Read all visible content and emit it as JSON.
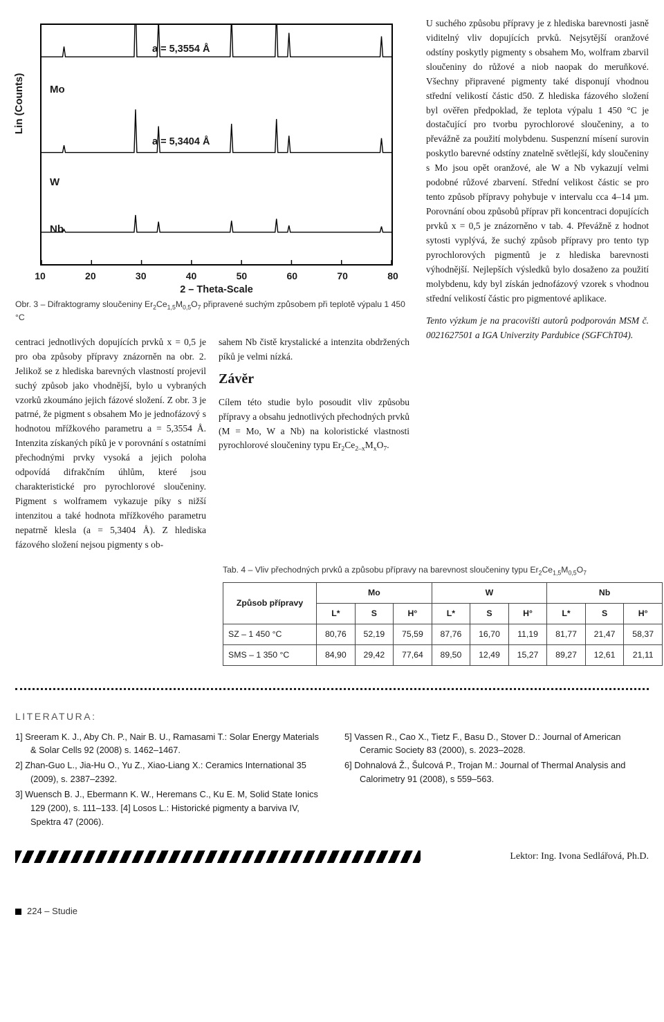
{
  "chart": {
    "type": "xrd",
    "ylabel": "Lin (Counts)",
    "xlabel": "2 – Theta-Scale",
    "xticks": [
      10,
      20,
      30,
      40,
      50,
      60,
      70,
      80
    ],
    "xlim": [
      10,
      80
    ],
    "line_color": "#000000",
    "line_width": 1.4,
    "background_color": "#ffffff",
    "border_color": "#000000",
    "series": [
      {
        "label": "Mo",
        "annotation": "a = 5,3554 Å",
        "baseline": 260
      },
      {
        "label": "W",
        "annotation": "a = 5,3404 Å",
        "baseline": 140
      },
      {
        "label": "Nb",
        "annotation": "",
        "baseline": 40
      }
    ],
    "peaks_2theta": [
      14.5,
      28.8,
      33.4,
      48.0,
      57.0,
      59.5,
      78.0
    ],
    "peak_heights": [
      15,
      90,
      55,
      60,
      70,
      35,
      30
    ],
    "caption_prefix": "Obr. 3 – Difraktogramy sloučeniny Er",
    "caption_formula_parts": [
      "2",
      "Ce",
      "1,5",
      "M",
      "0,5",
      "O",
      "7"
    ],
    "caption_suffix": " připravené suchým způsobem při teplotě výpalu 1 450 °C"
  },
  "col_left": "centraci jednotlivých dopujících prvků x = 0,5 je pro oba způsoby přípravy znázorněn na obr. 2.\nJelikož se z hlediska barevných vlastností projevil suchý způsob jako vhodnější, bylo u vybraných vzorků zkoumáno jejich fázové složení. Z obr. 3 je patrné, že pigment s obsahem Mo je jednofázový s hodnotou mřížkového parametru a = 5,3554 Å. Intenzita získaných píků je v porovnání s ostatními přechodnými prvky vysoká a jejich poloha odpovídá difrakčním úhlům, které jsou charakteristické pro pyrochlorové sloučeniny. Pigment s wolframem vykazuje píky s nižší intenzitou a také hodnota mřížkového parametru nepatrně klesla (a = 5,3404 Å). Z hlediska fázového složení nejsou pigmenty s ob-",
  "col_mid_top": "sahem Nb čistě krystalické a intenzita obdržených píků je velmi nízká.",
  "zaver_heading": "Závěr",
  "col_mid_body_prefix": "Cílem této studie bylo posoudit vliv způsobu přípravy a obsahu jednotlivých přechodných prvků (M = Mo, W a Nb) na koloristické vlastnosti pyrochlorové sloučeniny typu Er",
  "col_mid_formula_parts": [
    "2",
    "Ce",
    "2–x",
    "M",
    "x",
    "O",
    "7"
  ],
  "col_mid_body_suffix": ".",
  "right_col_p1": "U suchého způsobu přípravy je z hlediska barevnosti jasně viditelný vliv dopujících prvků. Nejsytější oranžové odstíny poskytly pigmenty s obsahem Mo, wolfram zbarvil sloučeniny do růžové a niob naopak do meruňkové. Všechny připravené pigmenty také disponují vhodnou střední velikostí částic d50. Z hlediska fázového složení byl ověřen předpoklad, že teplota výpalu 1 450 °C je dostačující pro tvorbu pyrochlorové sloučeniny, a to převážně za použití molybdenu. Suspenzní mísení surovin poskytlo barevné odstíny znatelně světlejší, kdy sloučeniny s Mo jsou opět oranžové, ale W a Nb vykazují velmi podobné růžové zbarvení. Střední velikost částic se pro tento způsob přípravy pohybuje v intervalu cca 4–14 µm. Porovnání obou způsobů příprav při koncentraci dopujících prvků x = 0,5 je znázorněno v tab. 4. Převážně z hodnot sytosti vyplývá, že suchý způsob přípravy pro tento typ pyrochlorových pigmentů je z hlediska barevnosti výhodnější. Nejlepších výsledků bylo dosaženo za použití molybdenu, kdy byl získán jednofázový vzorek s vhodnou střední velikostí částic pro pigmentové aplikace.",
  "right_col_p2": "Tento výzkum je na pracovišti autorů podporován MSM č. 0021627501 a IGA Univerzity Pardubice (SGFChT04).",
  "table": {
    "caption_prefix": "Tab. 4 – Vliv přechodných prvků a způsobu přípravy na barevnost sloučeniny typu Er",
    "caption_formula_parts": [
      "2",
      "Ce",
      "1,5",
      "M",
      "0,5",
      "O",
      "7"
    ],
    "row_header": "Způsob přípravy",
    "groups": [
      "Mo",
      "W",
      "Nb"
    ],
    "subheaders": [
      "L*",
      "S",
      "H°"
    ],
    "rows": [
      {
        "label": "SZ – 1 450 °C",
        "vals": [
          "80,76",
          "52,19",
          "75,59",
          "87,76",
          "16,70",
          "11,19",
          "81,77",
          "21,47",
          "58,37"
        ]
      },
      {
        "label": "SMS – 1 350 °C",
        "vals": [
          "84,90",
          "29,42",
          "77,64",
          "89,50",
          "12,49",
          "15,27",
          "89,27",
          "12,61",
          "21,11"
        ]
      }
    ],
    "border_color": "#444444",
    "font_size": 12.3
  },
  "lit_heading": "LITERATURA:",
  "refs_left": [
    "1] Sreeram K. J., Aby Ch. P., Nair B. U., Ramasami T.: Solar Energy Materials & Solar Cells 92 (2008) s. 1462–1467.",
    "2] Zhan-Guo L., Jia-Hu O., Yu Z., Xiao-Liang X.: Ceramics International 35 (2009), s. 2387–2392.",
    "3] Wuensch B. J., Ebermann K. W., Heremans C., Ku E. M, Solid State Ionics 129 (200), s. 111–133. [4] Losos L.: Historické pigmenty a barviva IV, Spektra 47 (2006)."
  ],
  "refs_right": [
    "5] Vassen R., Cao X., Tietz F., Basu D., Stover D.: Journal of American Ceramic Society 83 (2000), s. 2023–2028.",
    "6] Dohnalová Ž., Šulcová P., Trojan M.: Journal of Thermal Analysis and Calorimetry 91 (2008), s 559–563."
  ],
  "lektor": "Lektor: Ing. Ivona Sedlářová, Ph.D.",
  "footer": "224 – Studie"
}
